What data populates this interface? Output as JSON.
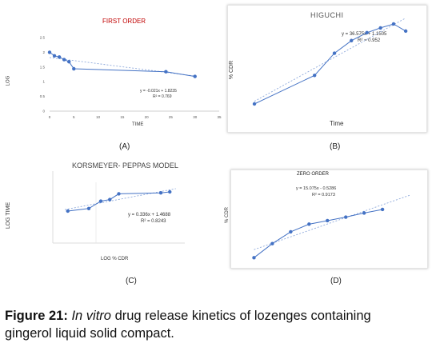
{
  "colors": {
    "series": "#4472C4",
    "trend": "#8EA9DB",
    "title_red": "#C00000",
    "axis": "#bfbfbf"
  },
  "caption": {
    "figure_label": "Figure 21:",
    "italic_part": "In vitro",
    "text_line1": " drug release kinetics of lozenges containing",
    "text_line2": "gingerol liquid solid compact."
  },
  "chart_data": [
    {
      "id": "first_order",
      "type": "line",
      "panel_label": "(A)",
      "title": "FIRST ORDER",
      "xlabel": "TIME",
      "ylabel": "LOG",
      "xlim": [
        0,
        35
      ],
      "ylim": [
        0,
        2.5
      ],
      "x_ticks": [
        "0",
        "5",
        "10",
        "15",
        "20",
        "25",
        "30",
        "35"
      ],
      "y_ticks": [
        "0",
        "0.5",
        "1",
        "1.5",
        "2",
        "2.5"
      ],
      "series": [
        {
          "x": [
            0,
            1,
            2,
            3,
            4,
            5,
            24,
            30
          ],
          "y": [
            2.0,
            1.88,
            1.84,
            1.75,
            1.68,
            1.44,
            1.34,
            1.18
          ]
        }
      ],
      "trendline": {
        "equation": "y = -0.021x + 1.8235",
        "r2": "R² = 0.769",
        "slope": -0.021,
        "intercept": 1.8235
      },
      "grid": false
    },
    {
      "id": "higuchi",
      "type": "line",
      "panel_label": "(B)",
      "title": "HIGUCHI",
      "xlabel": "Time",
      "ylabel": "% CDR",
      "x": [
        1,
        2.24,
        2.65,
        3.0,
        3.32,
        3.6,
        3.87,
        4.12
      ],
      "y": [
        0,
        36,
        64,
        80,
        90,
        96,
        101,
        92
      ],
      "xlim": [
        1,
        4.2
      ],
      "ylim": [
        0,
        105
      ],
      "trendline": {
        "equation": "y = 36.575x + 1.1505",
        "r2": "R² = 0.952"
      },
      "grid": false
    },
    {
      "id": "korsmeyer_peppas",
      "type": "line",
      "panel_label": "(C)",
      "title": "KORSMEYER- PEPPAS MODEL",
      "xlabel": "LOG % CDR",
      "ylabel": "LOG TIME",
      "x": [
        0.5,
        1.2,
        1.6,
        1.9,
        2.2,
        3.6,
        3.9
      ],
      "y": [
        2.0,
        2.16,
        2.62,
        2.72,
        3.08,
        3.14,
        3.2
      ],
      "xlim": [
        0,
        4.4
      ],
      "ylim": [
        0,
        4.5
      ],
      "trendline": {
        "equation": "y = 0.336x + 1.4688",
        "r2": "R² = 0.8243"
      },
      "grid": false
    },
    {
      "id": "zero_order",
      "type": "line",
      "panel_label": "(D)",
      "title": "ZERO ORDER",
      "xlabel": "",
      "ylabel": "% CDR",
      "x": [
        1,
        2,
        3,
        4,
        5,
        6,
        7,
        8
      ],
      "y": [
        0,
        24,
        44,
        57,
        63,
        69,
        76,
        82
      ],
      "xlim": [
        0.5,
        10
      ],
      "ylim": [
        -5,
        120
      ],
      "trendline": {
        "equation": "y = 15.075x - 0.5286",
        "r2": "R² = 0.9173"
      },
      "grid": false
    }
  ]
}
